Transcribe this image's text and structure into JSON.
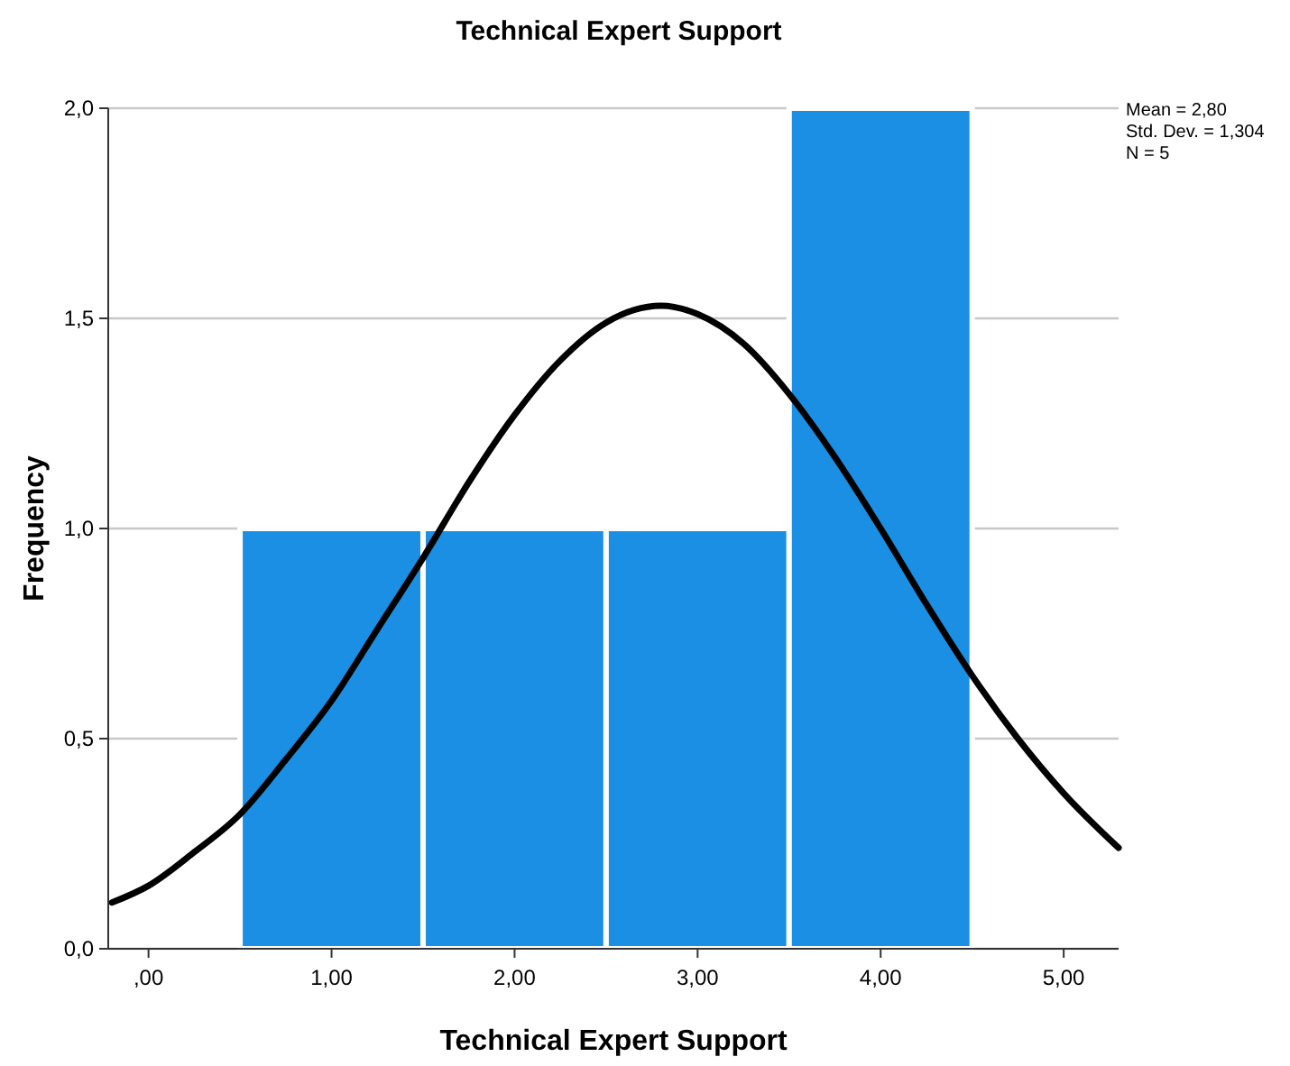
{
  "chart_data": {
    "type": "histogram",
    "title": "Technical Expert Support",
    "xlabel": "Technical Expert Support",
    "ylabel": "Frequency",
    "bins": [
      0.5,
      1.5,
      2.5,
      3.5,
      4.5
    ],
    "values": [
      1,
      1,
      1,
      2
    ],
    "color": "#1a8fe3",
    "xlim": [
      -0.22,
      5.3
    ],
    "ylim": [
      0,
      2
    ],
    "xticks": [
      {
        "value": 0,
        "label": ",00"
      },
      {
        "value": 1,
        "label": "1,00"
      },
      {
        "value": 2,
        "label": "2,00"
      },
      {
        "value": 3,
        "label": "3,00"
      },
      {
        "value": 4,
        "label": "4,00"
      },
      {
        "value": 5,
        "label": "5,00"
      }
    ],
    "yticks": [
      {
        "value": 0,
        "label": "0,0"
      },
      {
        "value": 0.5,
        "label": "0,5"
      },
      {
        "value": 1,
        "label": "1,0"
      },
      {
        "value": 1.5,
        "label": "1,5"
      },
      {
        "value": 2,
        "label": "2,0"
      }
    ],
    "grid": "y",
    "series": [
      {
        "type": "line",
        "color": "#000000",
        "line_style": "solid",
        "x": [
          -0.2,
          0,
          0.25,
          0.5,
          0.75,
          1,
          1.25,
          1.5,
          1.75,
          2,
          2.25,
          2.5,
          2.8,
          3,
          3.25,
          3.5,
          3.75,
          4,
          4.25,
          4.5,
          4.75,
          5,
          5.3
        ],
        "values": [
          0.11,
          0.15,
          0.23,
          0.32,
          0.45,
          0.59,
          0.76,
          0.93,
          1.11,
          1.27,
          1.4,
          1.49,
          1.53,
          1.51,
          1.44,
          1.32,
          1.17,
          1,
          0.82,
          0.65,
          0.5,
          0.37,
          0.24
        ]
      }
    ],
    "annotations": [
      "Mean = 2,80",
      "Std. Dev. = 1,304",
      "N = 5"
    ]
  }
}
